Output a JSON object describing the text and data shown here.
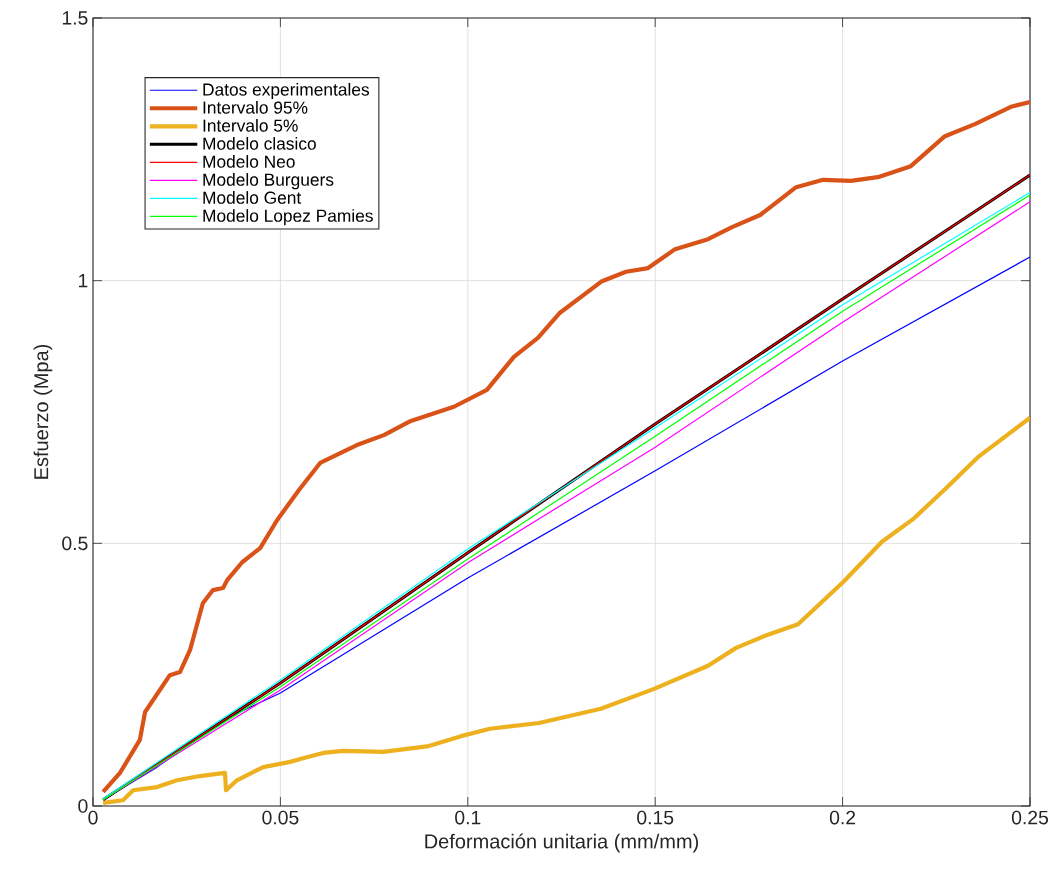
{
  "chart_data": {
    "type": "line",
    "xlabel": "Deformación unitaria (mm/mm)",
    "ylabel": "Esfuerzo (Mpa)",
    "xlim": [
      0,
      0.25
    ],
    "ylim": [
      0,
      1.5
    ],
    "xticks": [
      0,
      0.05,
      0.1,
      0.15,
      0.2,
      0.25
    ],
    "yticks": [
      0,
      0.5,
      1,
      1.5
    ],
    "grid": true,
    "legend": "top left",
    "marker": "none",
    "line_style": "solid",
    "series": [
      {
        "name": "Datos experimentales",
        "color": "#0000ff",
        "x": [
          0.0027,
          0.0171,
          0.0347,
          0.05,
          0.1,
          0.15,
          0.2,
          0.25
        ],
        "values": [
          0.012,
          0.074,
          0.164,
          0.215,
          0.434,
          0.638,
          0.847,
          1.045
        ]
      },
      {
        "name": "Intervalo 95%",
        "color": "#d95319",
        "x": [
          0.0027,
          0.0072,
          0.0125,
          0.0139,
          0.0205,
          0.0232,
          0.0259,
          0.0293,
          0.032,
          0.0347,
          0.0358,
          0.0398,
          0.0446,
          0.0491,
          0.055,
          0.0606,
          0.0704,
          0.0776,
          0.0848,
          0.0963,
          0.1051,
          0.1123,
          0.1187,
          0.1246,
          0.1358,
          0.1422,
          0.1481,
          0.1553,
          0.1641,
          0.1705,
          0.178,
          0.1876,
          0.1948,
          0.2022,
          0.2094,
          0.2182,
          0.2273,
          0.2353,
          0.2449,
          0.25
        ],
        "values": [
          0.027,
          0.063,
          0.126,
          0.179,
          0.249,
          0.255,
          0.297,
          0.386,
          0.411,
          0.415,
          0.43,
          0.464,
          0.491,
          0.544,
          0.602,
          0.653,
          0.687,
          0.706,
          0.733,
          0.76,
          0.792,
          0.855,
          0.891,
          0.939,
          0.999,
          1.017,
          1.024,
          1.06,
          1.079,
          1.102,
          1.125,
          1.178,
          1.192,
          1.19,
          1.197,
          1.218,
          1.275,
          1.298,
          1.331,
          1.34
        ]
      },
      {
        "name": "Intervalo 5%",
        "color": "#edb120",
        "x": [
          0.0027,
          0.008,
          0.0107,
          0.0171,
          0.0224,
          0.0285,
          0.0352,
          0.0355,
          0.0384,
          0.0454,
          0.0526,
          0.056,
          0.0614,
          0.0667,
          0.0774,
          0.0896,
          0.0982,
          0.1059,
          0.119,
          0.1355,
          0.1497,
          0.1641,
          0.1716,
          0.1793,
          0.1881,
          0.2001,
          0.2105,
          0.2188,
          0.2276,
          0.2361,
          0.25
        ],
        "values": [
          0.006,
          0.011,
          0.03,
          0.036,
          0.049,
          0.057,
          0.063,
          0.03,
          0.049,
          0.074,
          0.084,
          0.091,
          0.101,
          0.105,
          0.103,
          0.114,
          0.133,
          0.147,
          0.158,
          0.185,
          0.223,
          0.267,
          0.301,
          0.324,
          0.346,
          0.426,
          0.503,
          0.546,
          0.605,
          0.664,
          0.739
        ]
      },
      {
        "name": "Modelo clasico",
        "color": "#000000",
        "x": [
          0.0027,
          0.05,
          0.1,
          0.15,
          0.2,
          0.25
        ],
        "values": [
          0.012,
          0.234,
          0.482,
          0.727,
          0.965,
          1.201
        ]
      },
      {
        "name": "Modelo Neo",
        "color": "#ff0000",
        "x": [
          0.0027,
          0.05,
          0.1,
          0.15,
          0.2,
          0.25
        ],
        "values": [
          0.012,
          0.234,
          0.482,
          0.727,
          0.965,
          1.201
        ]
      },
      {
        "name": "Modelo Burguers",
        "color": "#ff00ff",
        "x": [
          0.0027,
          0.05,
          0.1,
          0.15,
          0.2,
          0.25
        ],
        "values": [
          0.012,
          0.221,
          0.463,
          0.683,
          0.921,
          1.15
        ]
      },
      {
        "name": "Modelo Gent",
        "color": "#00ffff",
        "x": [
          0.0027,
          0.05,
          0.1,
          0.15,
          0.2,
          0.25
        ],
        "values": [
          0.014,
          0.24,
          0.489,
          0.72,
          0.954,
          1.168
        ]
      },
      {
        "name": "Modelo Lopez Pamies",
        "color": "#00ff00",
        "x": [
          0.0027,
          0.05,
          0.1,
          0.15,
          0.2,
          0.25
        ],
        "values": [
          0.012,
          0.227,
          0.47,
          0.704,
          0.942,
          1.163
        ]
      }
    ]
  }
}
